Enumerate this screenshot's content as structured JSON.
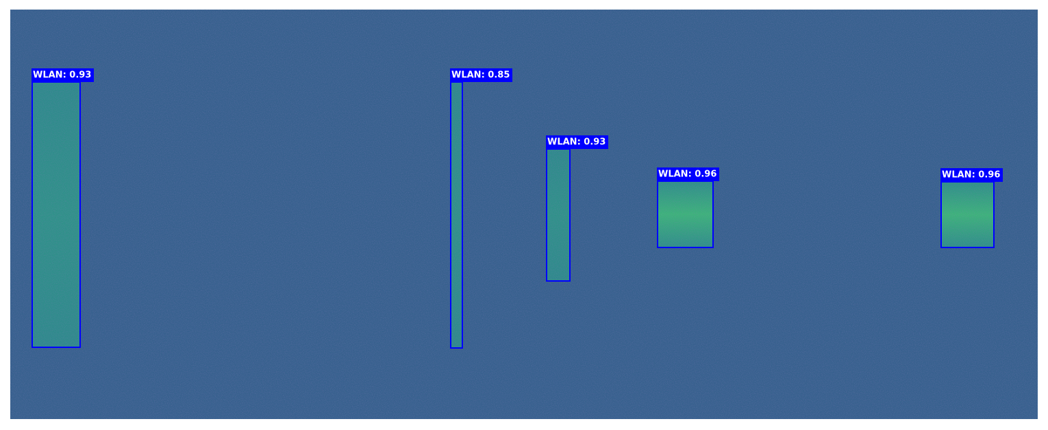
{
  "detections": [
    {
      "label": "WLAN: 0.93"
    },
    {
      "label": "WLAN: 0.85"
    },
    {
      "label": "WLAN: 0.93"
    },
    {
      "label": "WLAN: 0.96"
    },
    {
      "label": "WLAN: 0.96"
    }
  ]
}
